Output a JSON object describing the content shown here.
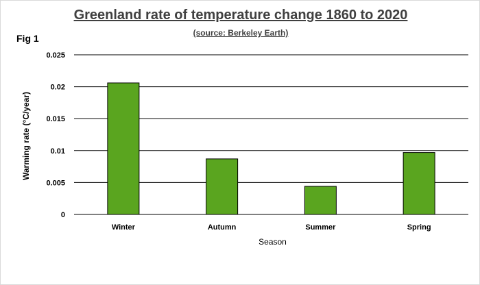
{
  "header": {
    "title": "Greenland rate of temperature change 1860 to 2020",
    "subtitle": "(source: Berkeley Earth)",
    "fig_label": "Fig 1"
  },
  "chart_data": {
    "type": "bar",
    "title": "Greenland rate of temperature change 1860 to 2020",
    "subtitle": "(source: Berkeley Earth)",
    "categories": [
      "Winter",
      "Autumn",
      "Summer",
      "Spring"
    ],
    "values": [
      0.0206,
      0.0087,
      0.0044,
      0.0097
    ],
    "xlabel": "Season",
    "ylabel": "Warming rate (°C/year)",
    "ylim": [
      0,
      0.025
    ],
    "yticks": [
      0,
      0.005,
      0.01,
      0.015,
      0.02,
      0.025
    ],
    "ytick_labels": [
      "0",
      "0.005",
      "0.01",
      "0.015",
      "0.02",
      "0.025"
    ],
    "bar_color": "#5aa51f",
    "bar_edge_color": "#000000",
    "grid": true,
    "legend": "none"
  }
}
